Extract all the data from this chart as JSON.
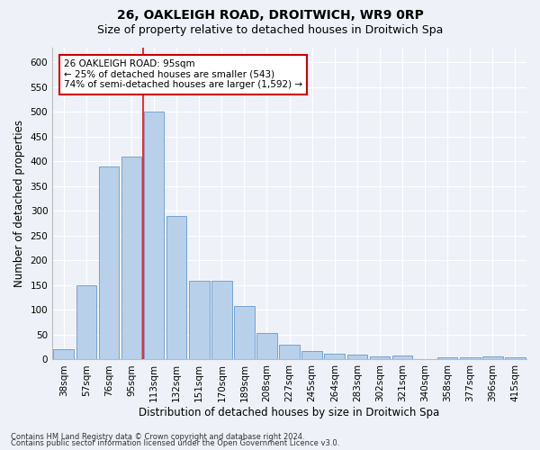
{
  "title": "26, OAKLEIGH ROAD, DROITWICH, WR9 0RP",
  "subtitle": "Size of property relative to detached houses in Droitwich Spa",
  "xlabel": "Distribution of detached houses by size in Droitwich Spa",
  "ylabel": "Number of detached properties",
  "categories": [
    "38sqm",
    "57sqm",
    "76sqm",
    "95sqm",
    "113sqm",
    "132sqm",
    "151sqm",
    "170sqm",
    "189sqm",
    "208sqm",
    "227sqm",
    "245sqm",
    "264sqm",
    "283sqm",
    "302sqm",
    "321sqm",
    "340sqm",
    "358sqm",
    "377sqm",
    "396sqm",
    "415sqm"
  ],
  "values": [
    20,
    150,
    390,
    410,
    500,
    290,
    158,
    158,
    108,
    54,
    30,
    17,
    12,
    10,
    7,
    8,
    0,
    5,
    5,
    7,
    5
  ],
  "bar_color": "#b8d0ea",
  "bar_edge_color": "#6699cc",
  "red_line_index": 3.5,
  "annotation_line1": "26 OAKLEIGH ROAD: 95sqm",
  "annotation_line2": "← 25% of detached houses are smaller (543)",
  "annotation_line3": "74% of semi-detached houses are larger (1,592) →",
  "annotation_box_color": "#ffffff",
  "annotation_box_edge": "#cc0000",
  "ylim": [
    0,
    630
  ],
  "yticks": [
    0,
    50,
    100,
    150,
    200,
    250,
    300,
    350,
    400,
    450,
    500,
    550,
    600
  ],
  "footer1": "Contains HM Land Registry data © Crown copyright and database right 2024.",
  "footer2": "Contains public sector information licensed under the Open Government Licence v3.0.",
  "background_color": "#eef2f8",
  "grid_color": "#ffffff",
  "title_fontsize": 10,
  "subtitle_fontsize": 9,
  "label_fontsize": 8.5,
  "tick_fontsize": 7.5,
  "footer_fontsize": 6.0
}
